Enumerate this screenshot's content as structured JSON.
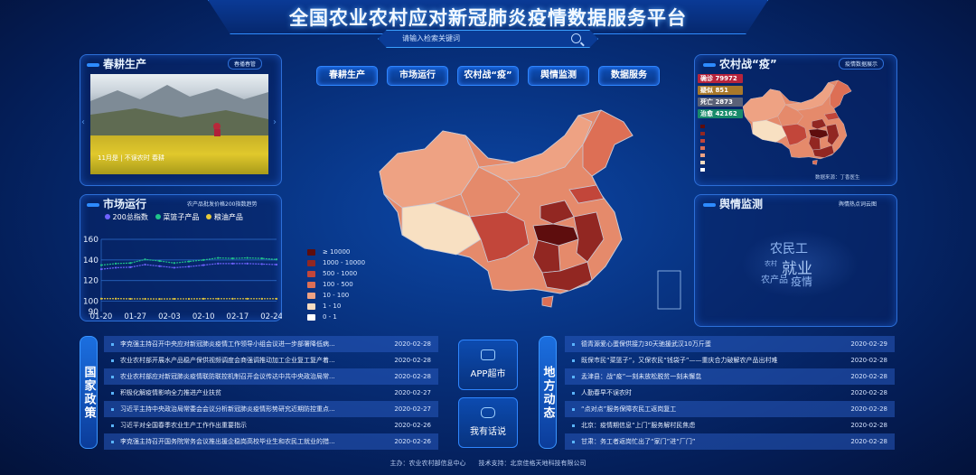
{
  "header": {
    "title": "全国农业农村应对新冠肺炎疫情数据服务平台",
    "search_placeholder": "请输入检索关键词"
  },
  "nav": [
    "春耕生产",
    "市场运行",
    "农村战“疫”",
    "舆情监测",
    "数据服务"
  ],
  "spring": {
    "title": "春耕生产",
    "tag": "春播春管",
    "caption": "11月是 | 不误农时 春耕"
  },
  "market": {
    "title": "市场运行",
    "tag": "农产品批发价格200指数趋势",
    "legend": [
      {
        "name": "200总指数",
        "color": "#6f62ff"
      },
      {
        "name": "菜篮子产品",
        "color": "#1fc48a"
      },
      {
        "name": "粮油产品",
        "color": "#e6c93a"
      }
    ]
  },
  "chart_data": {
    "type": "line",
    "x": [
      "01-20",
      "01-23",
      "01-26",
      "01-29",
      "02-01",
      "02-04",
      "02-07",
      "02-10",
      "02-13",
      "02-16",
      "02-19",
      "02-22",
      "02-25"
    ],
    "xticks": [
      "01-20",
      "01-27",
      "02-03",
      "02-10",
      "02-17",
      "02-24"
    ],
    "yticks": [
      90,
      100,
      120,
      140,
      160
    ],
    "ylim": [
      90,
      160
    ],
    "grid": true,
    "series": [
      {
        "name": "200总指数",
        "values": [
          131,
          132.5,
          133,
          135.5,
          134,
          132.5,
          133.5,
          135,
          136.5,
          136.5,
          136.5,
          136,
          135.5
        ]
      },
      {
        "name": "菜篮子产品",
        "values": [
          135,
          136.5,
          137,
          140.5,
          139,
          137,
          138.5,
          140,
          142,
          141.5,
          142,
          141.5,
          140.5
        ]
      },
      {
        "name": "粮油产品",
        "values": [
          102.5,
          102.5,
          102.3,
          102.3,
          102.2,
          102.3,
          102.3,
          102.4,
          102.4,
          102.4,
          102.4,
          102.4,
          102.4
        ]
      }
    ]
  },
  "epidemic": {
    "title": "农村战“疫”",
    "tag": "疫情数据展示",
    "stats": [
      {
        "label": "确诊",
        "value": "79972",
        "color": "#b7243c"
      },
      {
        "label": "疑似",
        "value": "851",
        "color": "#a8782a"
      },
      {
        "label": "死亡",
        "value": "2873",
        "color": "#5a6177"
      },
      {
        "label": "治愈",
        "value": "42162",
        "color": "#178a6a"
      }
    ],
    "source": "数据来源：丁香医生"
  },
  "map_legend": [
    {
      "label": "≥ 10000",
      "color": "#5e0d0d"
    },
    {
      "label": "1000 - 10000",
      "color": "#922722"
    },
    {
      "label": "500 - 1000",
      "color": "#c2463a"
    },
    {
      "label": "100 - 500",
      "color": "#dd6f55"
    },
    {
      "label": "10 - 100",
      "color": "#eea283"
    },
    {
      "label": "1 - 10",
      "color": "#f8dcc0"
    },
    {
      "label": "0 - 1",
      "color": "#ffffff"
    }
  ],
  "opinion": {
    "title": "舆情监测",
    "tag": "舆情热点词云图",
    "words": [
      "农民工",
      "就业",
      "农产品",
      "疫情",
      "农村"
    ]
  },
  "policy": {
    "tab": "国家政策",
    "items": [
      {
        "title": "李克强主持召开中央应对新冠肺炎疫情工作领导小组会议进一步部署降低病...",
        "date": "2020-02-28"
      },
      {
        "title": "农业农村部开展水产品稳产保供视频调度会商强调推动加工企业复工复产着...",
        "date": "2020-02-28"
      },
      {
        "title": "农业农村部应对新冠肺炎疫情联防联控机制召开会议传达中共中央政治局常...",
        "date": "2020-02-28"
      },
      {
        "title": "积极化解疫情影响全力推进产业扶贫",
        "date": "2020-02-27"
      },
      {
        "title": "习近平主持中央政治局常委会会议分析新冠肺炎疫情形势研究近期防控重点...",
        "date": "2020-02-27"
      },
      {
        "title": "习近平对全国春季农业生产工作作出重要指示",
        "date": "2020-02-26"
      },
      {
        "title": "李克强主持召开国务院常务会议推出援企稳岗高校毕业生和农民工就业的措...",
        "date": "2020-02-26"
      }
    ]
  },
  "center_buttons": {
    "app": "APP超市",
    "talk": "我有话说"
  },
  "local": {
    "tab": "地方动态",
    "items": [
      {
        "title": "德青源爱心蛋保供接力30天驰援武汉10万斤蛋",
        "date": "2020-02-29"
      },
      {
        "title": "既保市民“菜篮子”，又保农民“钱袋子”——重庆合力破解农产品出村难",
        "date": "2020-02-28"
      },
      {
        "title": "孟津县：战“疫”一刻未放松脱贫一刻未懈怠",
        "date": "2020-02-28"
      },
      {
        "title": "人勤春早不误农时",
        "date": "2020-02-28"
      },
      {
        "title": "“点对点”服务保障农民工返岗复工",
        "date": "2020-02-28"
      },
      {
        "title": "北京：疫情期信息“上门”服务解村民焦虑",
        "date": "2020-02-28"
      },
      {
        "title": "甘肃：务工者返岗忙出了“家门”进“厂门”",
        "date": "2020-02-28"
      }
    ]
  },
  "footer": "主办：农业农村部信息中心　　技术支持：北京佳格天地科技有限公司"
}
